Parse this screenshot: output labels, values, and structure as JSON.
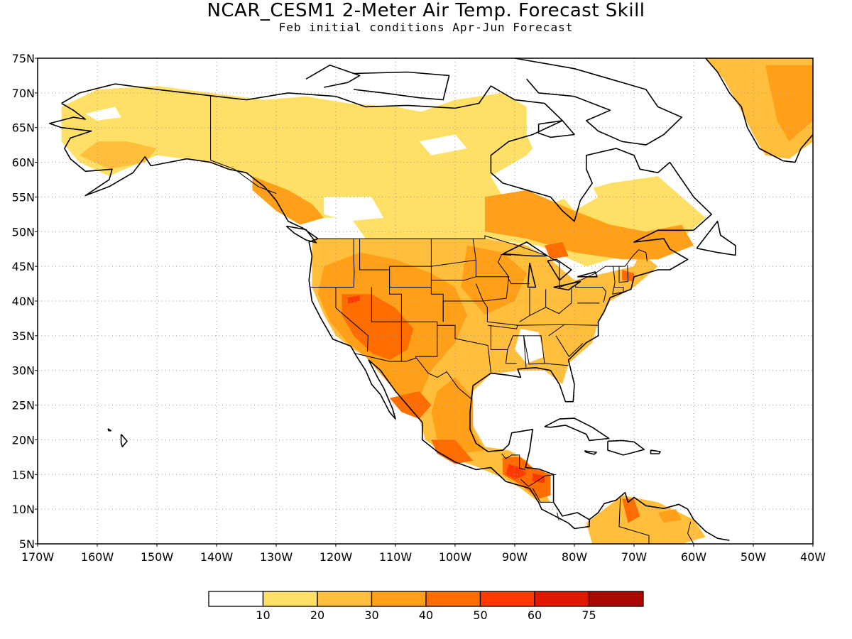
{
  "title": "NCAR_CESM1 2-Meter Air Temp. Forecast Skill",
  "subtitle": "Feb initial conditions  Apr-Jun Forecast",
  "map": {
    "lon_range": [
      -170,
      -40
    ],
    "lat_range": [
      5,
      75
    ],
    "lat_ticks": [
      {
        "value": 75,
        "label": "75N"
      },
      {
        "value": 70,
        "label": "70N"
      },
      {
        "value": 65,
        "label": "65N"
      },
      {
        "value": 60,
        "label": "60N"
      },
      {
        "value": 55,
        "label": "55N"
      },
      {
        "value": 50,
        "label": "50N"
      },
      {
        "value": 45,
        "label": "45N"
      },
      {
        "value": 40,
        "label": "40N"
      },
      {
        "value": 35,
        "label": "35N"
      },
      {
        "value": 30,
        "label": "30N"
      },
      {
        "value": 25,
        "label": "25N"
      },
      {
        "value": 20,
        "label": "20N"
      },
      {
        "value": 15,
        "label": "15N"
      },
      {
        "value": 10,
        "label": "10N"
      },
      {
        "value": 5,
        "label": "5N"
      }
    ],
    "lon_ticks": [
      {
        "value": -170,
        "label": "170W"
      },
      {
        "value": -160,
        "label": "160W"
      },
      {
        "value": -150,
        "label": "150W"
      },
      {
        "value": -140,
        "label": "140W"
      },
      {
        "value": -130,
        "label": "130W"
      },
      {
        "value": -120,
        "label": "120W"
      },
      {
        "value": -110,
        "label": "110W"
      },
      {
        "value": -100,
        "label": "100W"
      },
      {
        "value": -90,
        "label": "90W"
      },
      {
        "value": -80,
        "label": "80W"
      },
      {
        "value": -70,
        "label": "70W"
      },
      {
        "value": -60,
        "label": "60W"
      },
      {
        "value": -50,
        "label": "50W"
      },
      {
        "value": -40,
        "label": "40W"
      }
    ],
    "grid": "dotted"
  },
  "legend": {
    "colors": [
      "#ffffff",
      "#ffe066",
      "#ffbe3c",
      "#ffa018",
      "#ff6c00",
      "#ff3a00",
      "#e01800",
      "#a80800"
    ],
    "labels": [
      "10",
      "20",
      "30",
      "40",
      "50",
      "60",
      "75"
    ]
  }
}
